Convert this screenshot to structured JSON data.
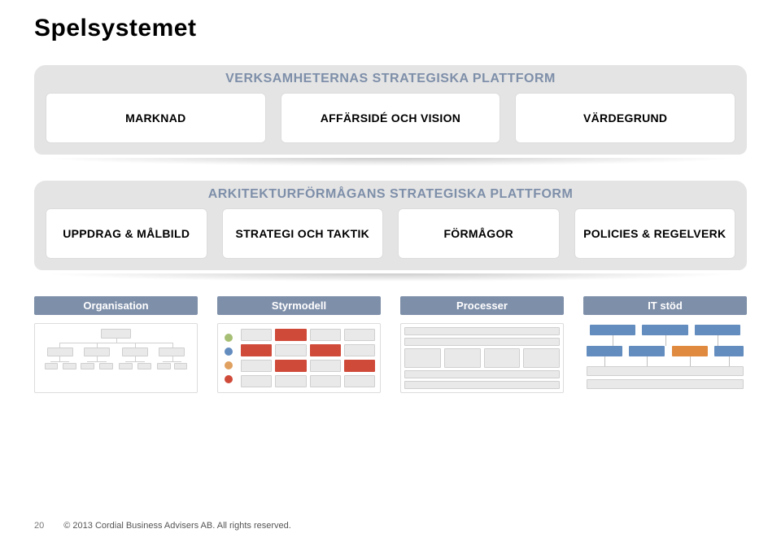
{
  "title": "Spelsystemet",
  "colors": {
    "platform_bg": "#e4e4e4",
    "platform_title_color": "#7e8fa9",
    "card_bg": "#ffffff",
    "card_border": "#dcdcdc",
    "col_header_bg": "#7e8fa9",
    "col_header_text": "#ffffff",
    "grey_box": "#e9e9e9",
    "grey_border": "#cfcfcf",
    "accent_red": "#d04a3a",
    "accent_blue": "#638cbf",
    "accent_orange": "#e08a3f",
    "dot_green": "#a6bf74",
    "dot_blue": "#638cbf",
    "dot_orange": "#e0a060",
    "dot_red": "#d04a3a"
  },
  "platform_top": {
    "title": "VERKSAMHETERNAS STRATEGISKA PLATTFORM",
    "cards": [
      "MARKNAD",
      "AFFÄRSIDÉ OCH VISION",
      "VÄRDEGRUND"
    ]
  },
  "platform_mid": {
    "title": "ARKITEKTURFÖRMÅGANS STRATEGISKA PLATTFORM",
    "cards": [
      "UPPDRAG & MÅLBILD",
      "STRATEGI OCH TAKTIK",
      "FÖRMÅGOR",
      "POLICIES & REGELVERK"
    ]
  },
  "bottom_columns": [
    {
      "label": "Organisation"
    },
    {
      "label": "Styrmodell"
    },
    {
      "label": "Processer"
    },
    {
      "label": "IT stöd"
    }
  ],
  "styrmodell_grid": {
    "rows": 4,
    "cols": 4,
    "dot_colors": [
      "#a6bf74",
      "#638cbf",
      "#e0a060",
      "#d04a3a"
    ],
    "cell_colors": [
      [
        "#e9e9e9",
        "#d04a3a",
        "#e9e9e9",
        "#e9e9e9"
      ],
      [
        "#d04a3a",
        "#e9e9e9",
        "#d04a3a",
        "#e9e9e9"
      ],
      [
        "#e9e9e9",
        "#d04a3a",
        "#e9e9e9",
        "#d04a3a"
      ],
      [
        "#e9e9e9",
        "#e9e9e9",
        "#e9e9e9",
        "#e9e9e9"
      ]
    ]
  },
  "footer": {
    "page_number": "20",
    "copyright": "© 2013 Cordial Business Advisers AB. All rights reserved."
  }
}
